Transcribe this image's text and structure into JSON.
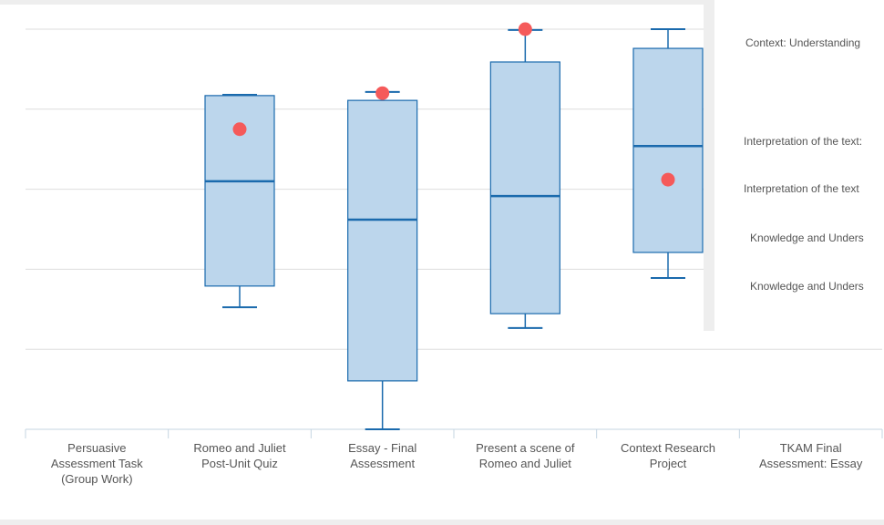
{
  "chart_data": {
    "type": "box",
    "categories": [
      "Persuasive Assessment Task (Group Work)",
      "Romeo and Juliet Post-Unit Quiz",
      "Essay - Final Assessment",
      "Present a scene of Romeo and Juliet",
      "Context Research Project",
      "TKAM Final Assessment: Essay"
    ],
    "min": [
      null,
      30.5,
      0,
      25.3,
      37.8,
      null
    ],
    "q1": [
      null,
      35.8,
      12.1,
      28.9,
      44.2,
      null
    ],
    "median": [
      null,
      62,
      52.4,
      58.3,
      70.8,
      null
    ],
    "q3": [
      null,
      83.4,
      82.2,
      91.8,
      95.2,
      null
    ],
    "max": [
      null,
      83.6,
      84.3,
      99.8,
      100,
      null
    ],
    "points": [
      null,
      75,
      84,
      100,
      62.4,
      null
    ],
    "box_color": "#bcd6ec",
    "line_color": "#1a6aad",
    "point_color": "#f55a5a",
    "ylim": [
      0,
      100
    ],
    "yticks": [
      0,
      20,
      40,
      60,
      80,
      100
    ],
    "grid": true
  },
  "side_panel": {
    "items": [
      "Context: Understanding",
      "Interpretation of the text:",
      "Interpretation of the text",
      "Knowledge and Unders",
      "Knowledge and Unders"
    ]
  }
}
